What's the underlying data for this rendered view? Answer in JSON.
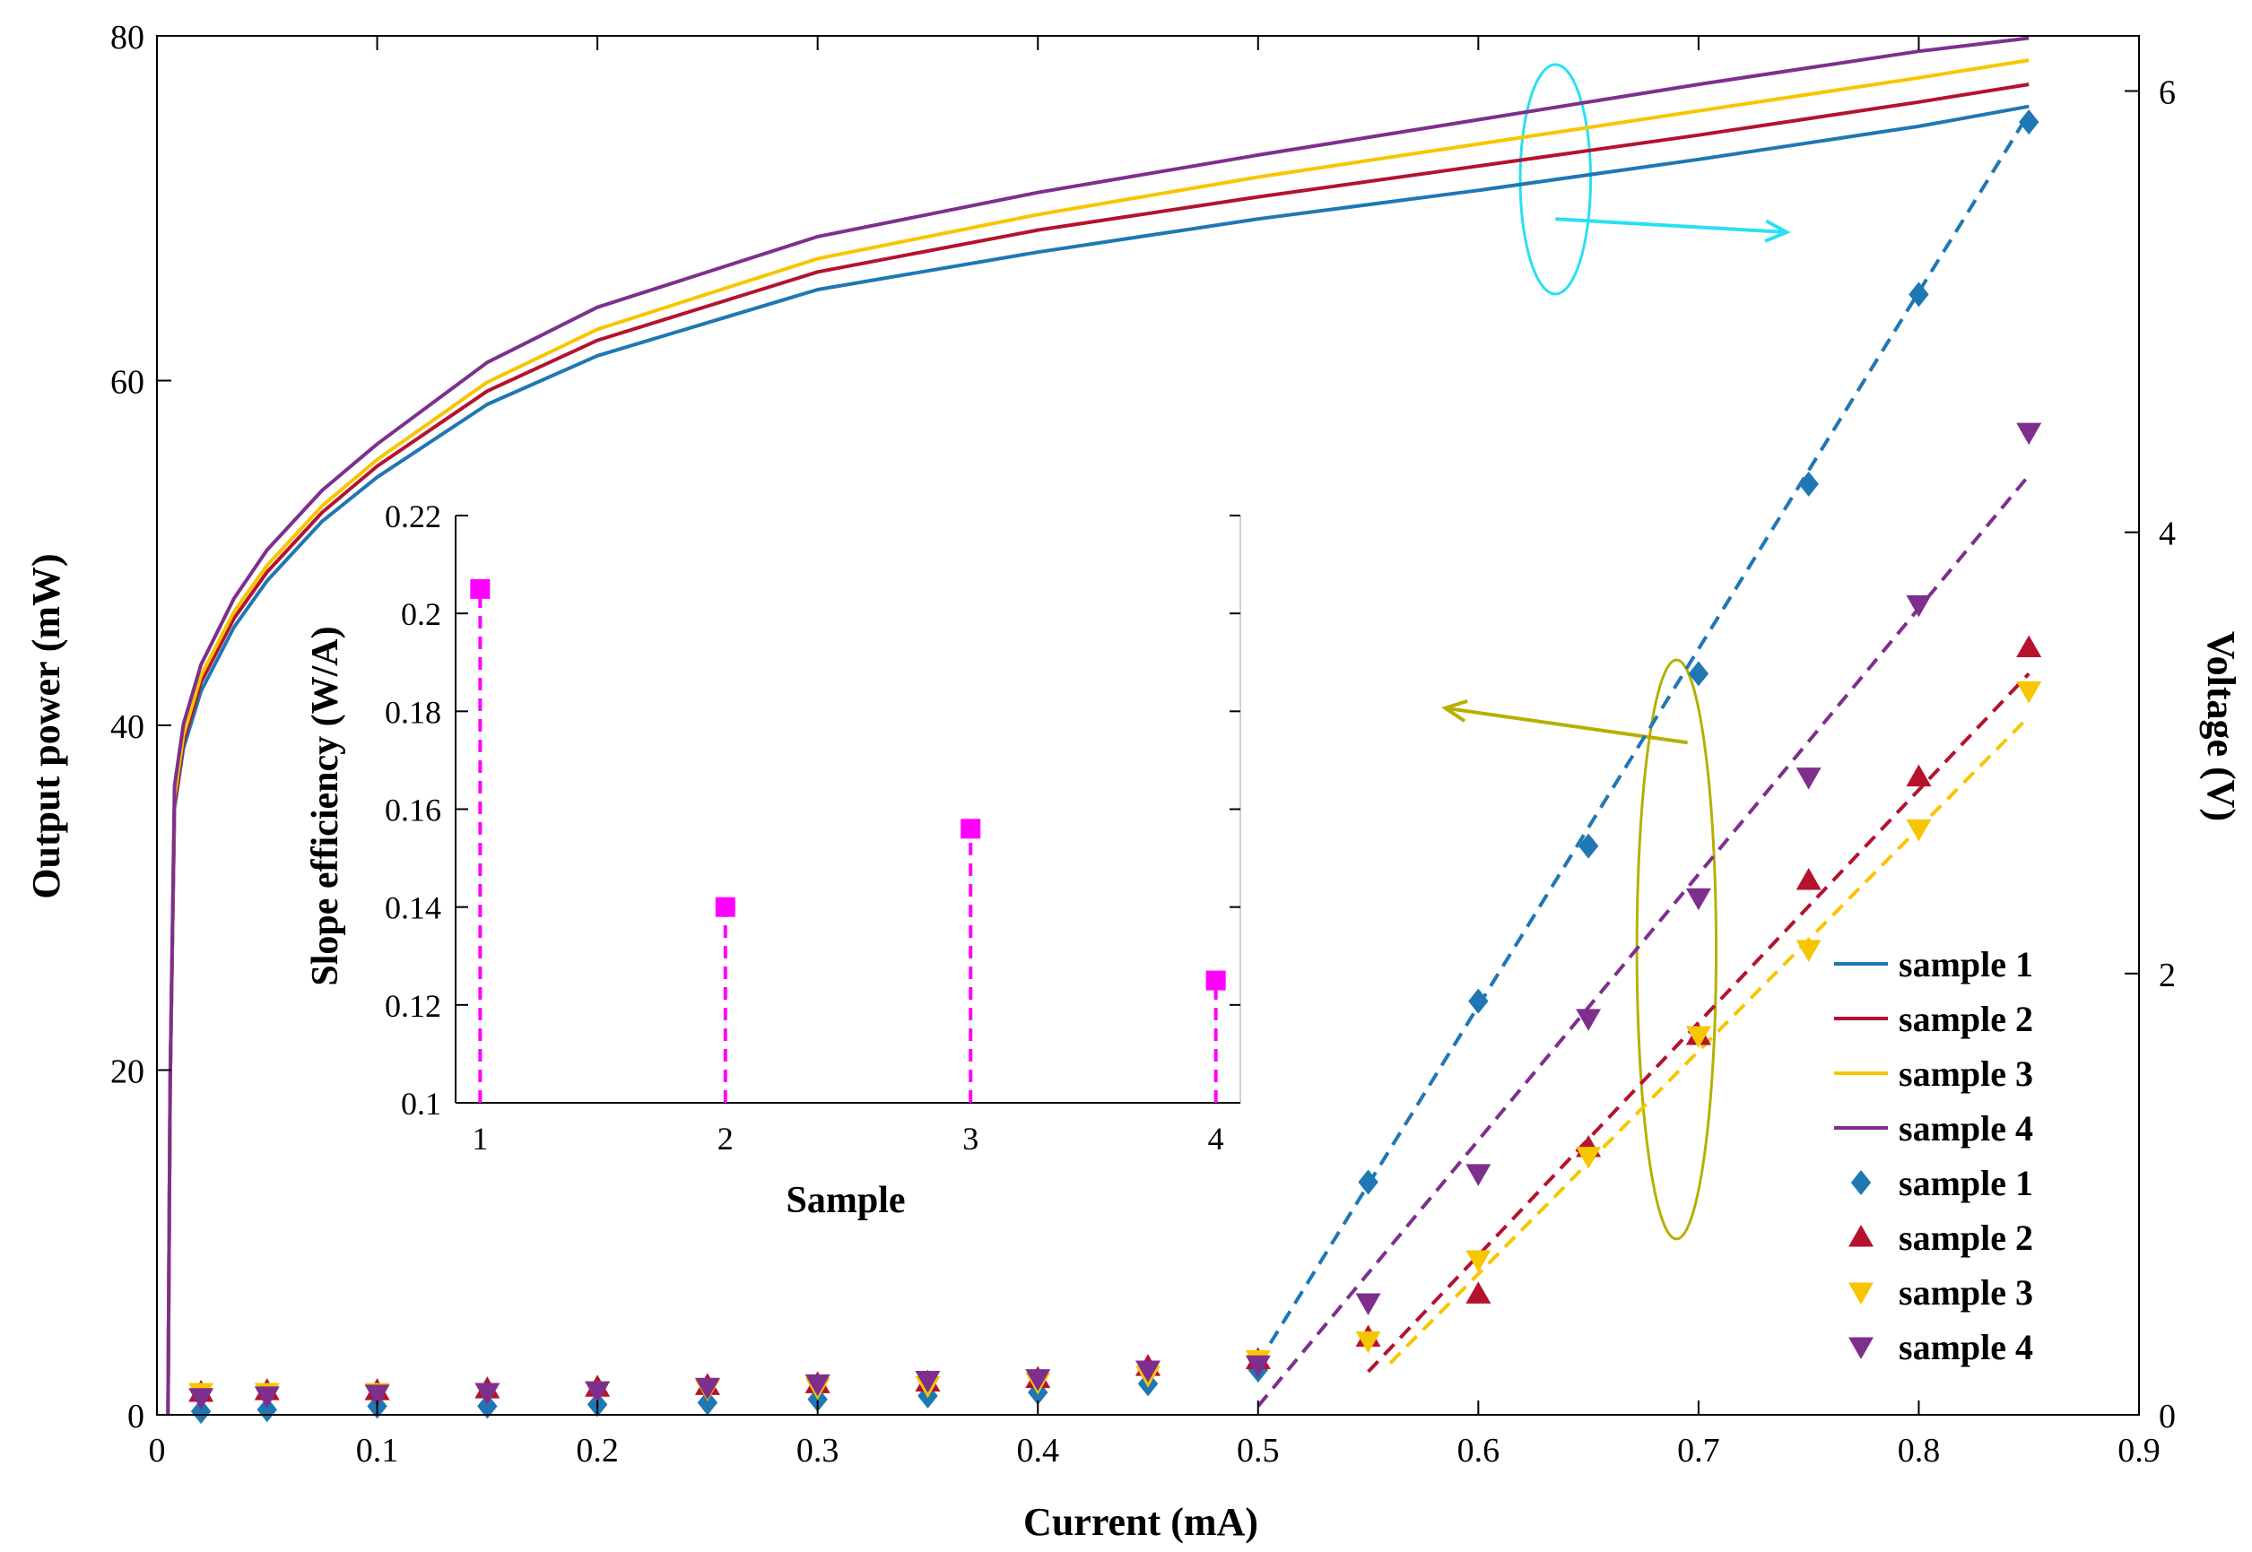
{
  "chart_data": [
    {
      "type": "line+scatter",
      "title": "",
      "xlabel": "Current (mA)",
      "ylabel": "Output power (mW)",
      "y2label": "Voltage (V)",
      "xlim": [
        0,
        0.9
      ],
      "ylim": [
        0,
        80
      ],
      "y2lim": [
        0,
        6.25
      ],
      "xticks": [
        "0",
        "0.1",
        "0.2",
        "0.3",
        "0.4",
        "0.5",
        "0.6",
        "0.7",
        "0.8",
        "0.9"
      ],
      "yticks": [
        "0",
        "20",
        "40",
        "60",
        "80"
      ],
      "y2ticks": [
        "0",
        "2",
        "4",
        "6"
      ],
      "grid": false,
      "legend_position": "right",
      "legend": [
        "sample 1",
        "sample 2",
        "sample 3",
        "sample 4",
        "sample 1",
        "sample 2",
        "sample 3",
        "sample 4"
      ],
      "colors": {
        "sample1": "#1f77b4",
        "sample2": "#b5122e",
        "sample3": "#f7c600",
        "sample4": "#7e2f8e",
        "cyan_annotation": "#29e0f0",
        "olive_annotation": "#b5b000",
        "axes": "#000000"
      },
      "voltage_series_axis": "right",
      "voltage_series": [
        {
          "name": "sample 1",
          "color": "#1f77b4",
          "x": [
            0.005,
            0.006,
            0.008,
            0.012,
            0.02,
            0.035,
            0.05,
            0.075,
            0.1,
            0.15,
            0.2,
            0.3,
            0.4,
            0.5,
            0.6,
            0.7,
            0.8,
            0.85
          ],
          "y": [
            0,
            1.5,
            2.75,
            3.02,
            3.28,
            3.57,
            3.78,
            4.05,
            4.25,
            4.58,
            4.8,
            5.1,
            5.27,
            5.42,
            5.55,
            5.69,
            5.84,
            5.93
          ]
        },
        {
          "name": "sample 2",
          "color": "#b5122e",
          "x": [
            0.005,
            0.006,
            0.008,
            0.012,
            0.02,
            0.035,
            0.05,
            0.075,
            0.1,
            0.15,
            0.2,
            0.3,
            0.4,
            0.5,
            0.6,
            0.7,
            0.8,
            0.85
          ],
          "y": [
            0,
            1.5,
            2.77,
            3.05,
            3.32,
            3.61,
            3.82,
            4.09,
            4.3,
            4.64,
            4.87,
            5.18,
            5.37,
            5.52,
            5.66,
            5.8,
            5.95,
            6.03
          ]
        },
        {
          "name": "sample 3",
          "color": "#f7c600",
          "x": [
            0.005,
            0.006,
            0.008,
            0.012,
            0.02,
            0.035,
            0.05,
            0.075,
            0.1,
            0.15,
            0.2,
            0.3,
            0.4,
            0.5,
            0.6,
            0.7,
            0.8,
            0.85
          ],
          "y": [
            0,
            1.5,
            2.8,
            3.08,
            3.35,
            3.64,
            3.85,
            4.12,
            4.33,
            4.68,
            4.92,
            5.24,
            5.44,
            5.61,
            5.76,
            5.91,
            6.06,
            6.14
          ]
        },
        {
          "name": "sample 4",
          "color": "#7e2f8e",
          "x": [
            0.005,
            0.006,
            0.008,
            0.012,
            0.02,
            0.035,
            0.05,
            0.075,
            0.1,
            0.15,
            0.2,
            0.3,
            0.4,
            0.5,
            0.6,
            0.7,
            0.8,
            0.85
          ],
          "y": [
            0,
            1.5,
            2.85,
            3.13,
            3.4,
            3.7,
            3.92,
            4.19,
            4.4,
            4.77,
            5.02,
            5.34,
            5.54,
            5.71,
            5.87,
            6.03,
            6.18,
            6.24
          ]
        }
      ],
      "power_series_axis": "left",
      "power_series": [
        {
          "name": "sample 1",
          "marker": "diamond",
          "color": "#1f77b4",
          "x": [
            0.02,
            0.05,
            0.1,
            0.15,
            0.2,
            0.25,
            0.3,
            0.35,
            0.4,
            0.45,
            0.5,
            0.55,
            0.6,
            0.65,
            0.7,
            0.75,
            0.8,
            0.85
          ],
          "y": [
            0.2,
            0.3,
            0.5,
            0.5,
            0.6,
            0.7,
            0.9,
            1.1,
            1.3,
            1.8,
            2.6,
            13.5,
            24.0,
            33.0,
            43.0,
            54.0,
            65.0,
            75.0
          ],
          "fit_x": [
            0.5,
            0.85
          ],
          "fit_y": [
            3.0,
            75.5
          ]
        },
        {
          "name": "sample 2",
          "marker": "triangle-up",
          "color": "#b5122e",
          "x": [
            0.02,
            0.05,
            0.1,
            0.15,
            0.2,
            0.25,
            0.3,
            0.35,
            0.4,
            0.45,
            0.5,
            0.55,
            0.6,
            0.65,
            0.7,
            0.75,
            0.8,
            0.85
          ],
          "y": [
            1.3,
            1.4,
            1.4,
            1.5,
            1.6,
            1.7,
            1.8,
            1.9,
            2.1,
            2.8,
            3.2,
            4.5,
            7.0,
            15.5,
            22.0,
            31.0,
            37.0,
            44.5
          ],
          "fit_x": [
            0.55,
            0.85
          ],
          "fit_y": [
            2.5,
            43.0
          ]
        },
        {
          "name": "sample 3",
          "marker": "triangle-down",
          "color": "#f7c600",
          "x": [
            0.02,
            0.05,
            0.1,
            0.15,
            0.2,
            0.25,
            0.3,
            0.35,
            0.4,
            0.45,
            0.5,
            0.55,
            0.6,
            0.65,
            0.7,
            0.75,
            0.8,
            0.85
          ],
          "y": [
            1.3,
            1.3,
            1.3,
            1.3,
            1.4,
            1.5,
            1.6,
            1.7,
            1.9,
            2.3,
            3.2,
            4.3,
            9.0,
            15.0,
            22.0,
            27.0,
            34.0,
            42.0
          ],
          "fit_x": [
            0.56,
            0.85
          ],
          "fit_y": [
            3.0,
            40.5
          ]
        },
        {
          "name": "sample 4",
          "marker": "triangle-down",
          "color": "#7e2f8e",
          "x": [
            0.02,
            0.05,
            0.1,
            0.15,
            0.2,
            0.25,
            0.3,
            0.35,
            0.4,
            0.45,
            0.5,
            0.55,
            0.6,
            0.65,
            0.7,
            0.75,
            0.8,
            0.85
          ],
          "y": [
            1.0,
            1.1,
            1.2,
            1.3,
            1.4,
            1.6,
            1.8,
            2.0,
            2.1,
            2.6,
            2.9,
            6.5,
            14.0,
            23.0,
            30.0,
            37.0,
            47.0,
            57.0
          ],
          "fit_x": [
            0.5,
            0.85
          ],
          "fit_y": [
            0.5,
            54.5
          ]
        }
      ],
      "annotations": [
        {
          "type": "ellipse",
          "color": "#29e0f0",
          "cx": 0.635,
          "cy_v": 5.6,
          "rx": 0.016,
          "ry_v": 0.52
        },
        {
          "type": "arrow",
          "color": "#29e0f0",
          "from": [
            0.635,
            5.42
          ],
          "to": [
            0.74,
            5.36
          ],
          "axis": "right"
        },
        {
          "type": "ellipse",
          "color": "#b5b000",
          "cx": 0.69,
          "cy": 27.0,
          "rx": 0.018,
          "ry": 16.8
        },
        {
          "type": "arrow",
          "color": "#b5b000",
          "from": [
            0.695,
            39.0
          ],
          "to": [
            0.585,
            41.0
          ],
          "axis": "left"
        }
      ]
    },
    {
      "type": "stem",
      "title": "",
      "xlabel": "Sample",
      "ylabel": "Slope efficiency (W/A)",
      "xlim": [
        0.9,
        4.1
      ],
      "ylim": [
        0.1,
        0.22
      ],
      "xticks": [
        "1",
        "2",
        "3",
        "4"
      ],
      "yticks": [
        "0.1",
        "0.12",
        "0.14",
        "0.16",
        "0.18",
        "0.2",
        "0.22"
      ],
      "categories": [
        1,
        2,
        3,
        4
      ],
      "values": [
        0.205,
        0.14,
        0.156,
        0.125
      ],
      "color": "#ff00ff",
      "marker": "square",
      "line_style": "dashed"
    }
  ]
}
